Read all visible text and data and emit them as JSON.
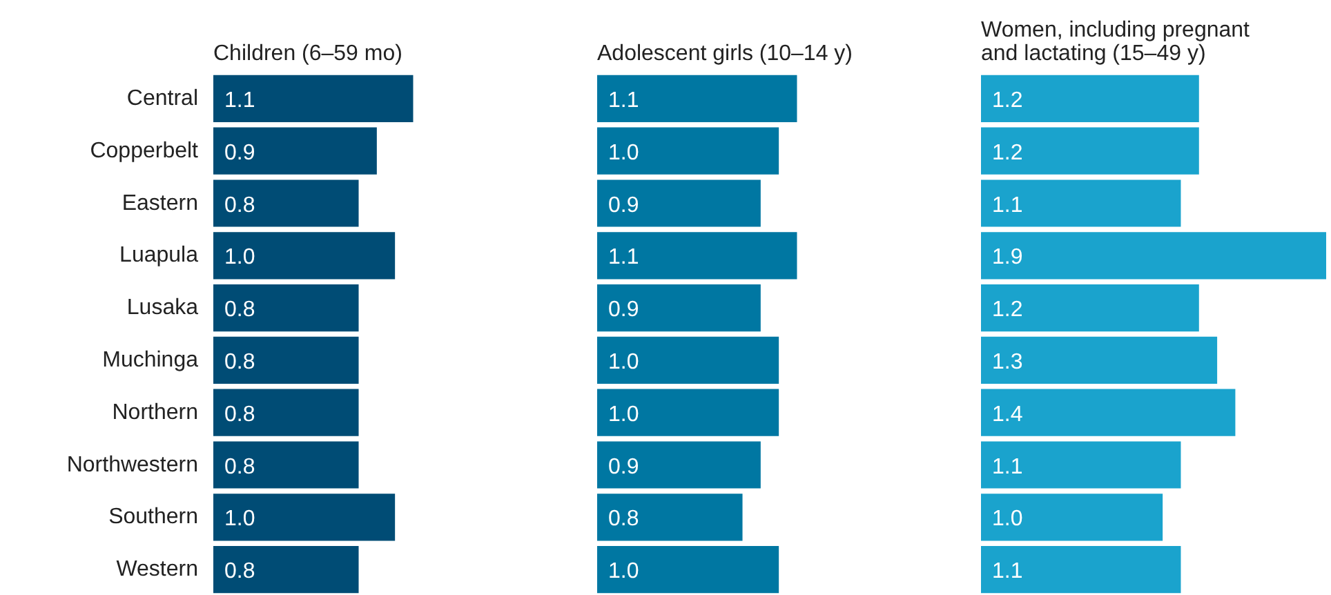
{
  "chart_data": [
    {
      "type": "bar",
      "orientation": "horizontal",
      "title": "Children (6–59 mo)",
      "categories": [
        "Central",
        "Copperbelt",
        "Eastern",
        "Luapula",
        "Lusaka",
        "Muchinga",
        "Northern",
        "Northwestern",
        "Southern",
        "Western"
      ],
      "values": [
        1.1,
        0.9,
        0.8,
        1.0,
        0.8,
        0.8,
        0.8,
        0.8,
        1.0,
        0.8
      ],
      "value_labels": [
        "1.1",
        "0.9",
        "0.8",
        "1.0",
        "0.8",
        "0.8",
        "0.8",
        "0.8",
        "1.0",
        "0.8"
      ],
      "color": "#004c75",
      "tick_labels": "y"
    },
    {
      "type": "bar",
      "orientation": "horizontal",
      "title": "Adolescent girls (10–14 y)",
      "categories": [
        null,
        null,
        null,
        null,
        null,
        null,
        null,
        null,
        null,
        null
      ],
      "values": [
        1.1,
        1.0,
        0.9,
        1.1,
        0.9,
        1.0,
        1.0,
        0.9,
        0.8,
        1.0
      ],
      "value_labels": [
        "1.1",
        "1.0",
        "0.9",
        "1.1",
        "0.9",
        "1.0",
        "1.0",
        "0.9",
        "0.8",
        "1.0"
      ],
      "color": "#0077a2",
      "tick_labels": false
    },
    {
      "type": "bar",
      "orientation": "horizontal",
      "title": "Women, including pregnant and lactating (15–49 y)",
      "categories": [
        null,
        null,
        null,
        null,
        null,
        null,
        null,
        null,
        null,
        null
      ],
      "values": [
        1.2,
        1.2,
        1.1,
        1.9,
        1.2,
        1.3,
        1.4,
        1.1,
        1.0,
        1.1
      ],
      "value_labels": [
        "1.2",
        "1.2",
        "1.1",
        "1.9",
        "1.2",
        "1.3",
        "1.4",
        "1.1",
        "1.0",
        "1.1"
      ],
      "color": "#1aa3cd",
      "tick_labels": false
    }
  ]
}
